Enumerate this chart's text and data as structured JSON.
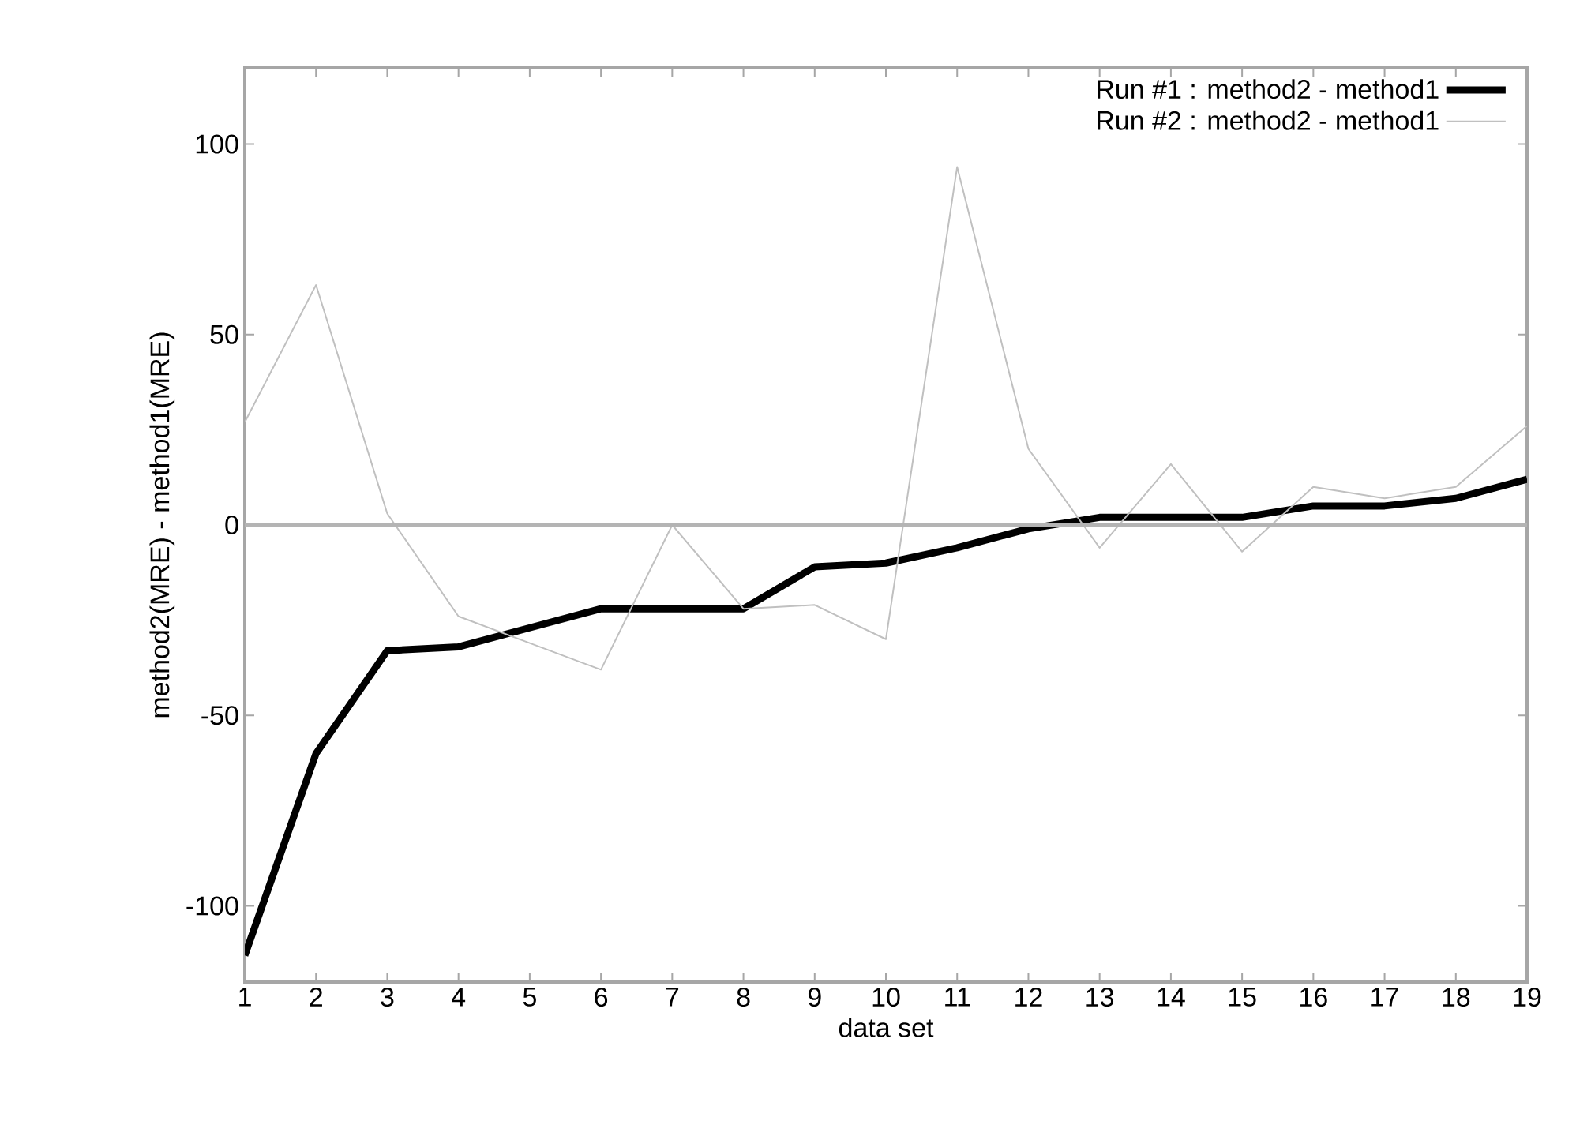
{
  "chart_data": {
    "type": "line",
    "xlabel": "data set",
    "ylabel": "method2(MRE) - method1(MRE)",
    "x": [
      1,
      2,
      3,
      4,
      5,
      6,
      7,
      8,
      9,
      10,
      11,
      12,
      13,
      14,
      15,
      16,
      17,
      18,
      19
    ],
    "series": [
      {
        "name": "Run #1 : method2 - method1",
        "color": "#000000",
        "values": [
          -113,
          -60,
          -33,
          -32,
          -27,
          -22,
          -22,
          -22,
          -11,
          -10,
          -6,
          -1,
          2,
          2,
          2,
          5,
          5,
          7,
          12
        ]
      },
      {
        "name": "Run #2 : method2 - method1",
        "color": "#c0c0c0",
        "values": [
          27,
          63,
          3,
          -24,
          -31,
          -38,
          0,
          -22,
          -21,
          -30,
          94,
          20,
          -6,
          16,
          -7,
          10,
          7,
          10,
          26
        ]
      }
    ],
    "xlim": [
      1,
      19
    ],
    "ylim": [
      -120,
      120
    ],
    "xticks": [
      1,
      2,
      3,
      4,
      5,
      6,
      7,
      8,
      9,
      10,
      11,
      12,
      13,
      14,
      15,
      16,
      17,
      18,
      19
    ],
    "yticks": [
      -100,
      -50,
      0,
      50,
      100
    ],
    "ref_lines": [
      {
        "axis": "y",
        "value": 0,
        "color": "#b4b4b4"
      }
    ],
    "legend": "top right",
    "grid": false,
    "marker": "none",
    "line_style": "solid"
  }
}
